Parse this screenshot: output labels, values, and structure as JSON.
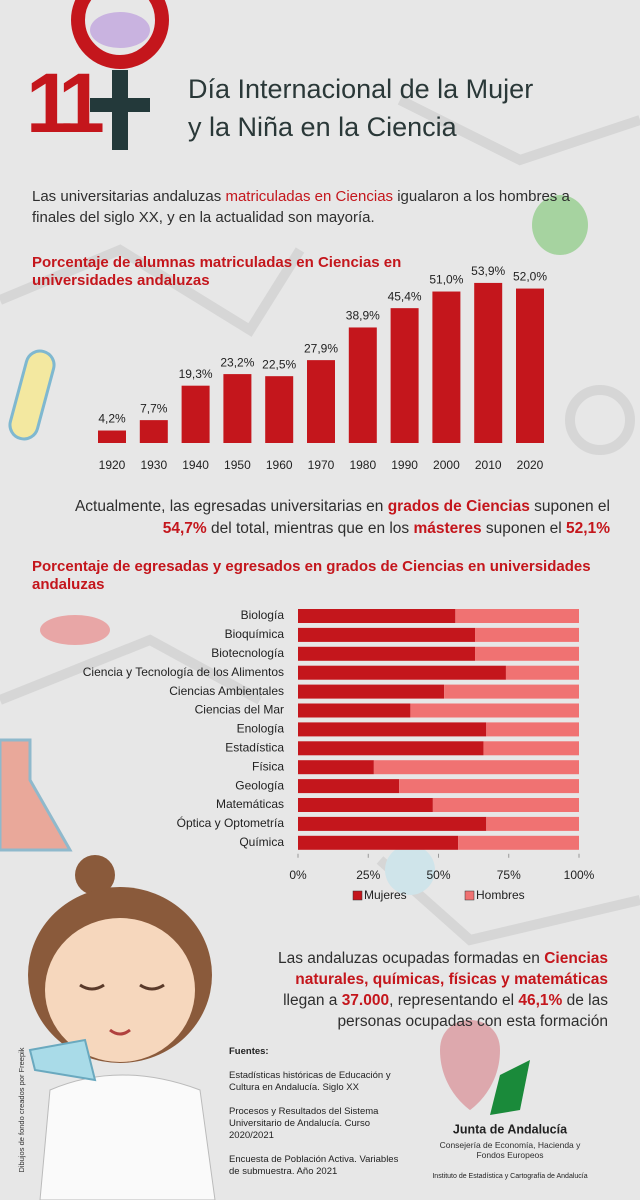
{
  "header": {
    "logo": "11",
    "title_line1": "Día Internacional de la Mujer",
    "title_line2": "y la Niña en la Ciencia"
  },
  "intro": [
    "Las universitarias andaluzas ",
    "matriculadas en Ciencias",
    " igualaron a los hombres a finales del siglo XX, y en la actualidad son mayoría."
  ],
  "summary": [
    "Actualmente, las egresadas universitarias en ",
    "grados de Ciencias",
    " suponen el ",
    "54,7%",
    " del total, mientras que en los ",
    "másteres",
    " suponen el ",
    "52,1%"
  ],
  "employment": [
    "Las andaluzas ocupadas formadas en ",
    "Ciencias naturales, químicas, físicas y matemáticas",
    " llegan a ",
    "37.000",
    ", representando el ",
    "46,1%",
    " de las personas ocupadas con esta formación"
  ],
  "chart_data": [
    {
      "type": "bar",
      "title": "Porcentaje de alumnas matriculadas en Ciencias en universidades andaluzas",
      "color": "#c4161c",
      "categories": [
        "1920",
        "1930",
        "1940",
        "1950",
        "1960",
        "1970",
        "1980",
        "1990",
        "2000",
        "2010",
        "2020"
      ],
      "values": [
        4.2,
        7.7,
        19.3,
        23.2,
        22.5,
        27.9,
        38.9,
        45.4,
        51.0,
        53.9,
        52.0
      ],
      "value_labels": [
        "4,2%",
        "7,7%",
        "19,3%",
        "23,2%",
        "22,5%",
        "27,9%",
        "38,9%",
        "45,4%",
        "51,0%",
        "53,9%",
        "52,0%"
      ]
    },
    {
      "type": "stacked-hbar",
      "title": "Porcentaje de egresadas y egresados en grados de Ciencias en universidades andaluzas",
      "categories": [
        "Biología",
        "Bioquímica",
        "Biotecnología",
        "Ciencia y Tecnología de los Alimentos",
        "Ciencias Ambientales",
        "Ciencias del Mar",
        "Enología",
        "Estadística",
        "Física",
        "Geología",
        "Matemáticas",
        "Óptica y Optometría",
        "Química"
      ],
      "series": [
        {
          "name": "Mujeres",
          "color": "#c4161c",
          "values": [
            56,
            63,
            63,
            74,
            52,
            40,
            67,
            66,
            27,
            36,
            48,
            67,
            57
          ]
        },
        {
          "name": "Hombres",
          "color": "#f07272",
          "values": [
            44,
            37,
            37,
            26,
            48,
            60,
            33,
            34,
            73,
            64,
            52,
            33,
            43
          ]
        }
      ],
      "xlim": [
        0,
        100
      ],
      "xticks": [
        {
          "value": 0,
          "label": "0%"
        },
        {
          "value": 25,
          "label": "25%"
        },
        {
          "value": 50,
          "label": "50%"
        },
        {
          "value": 75,
          "label": "75%"
        },
        {
          "value": 100,
          "label": "100%"
        }
      ],
      "legend": "bottom"
    }
  ],
  "sources": {
    "heading": "Fuentes:",
    "items": [
      "Estadísticas históricas de Educación y Cultura en Andalucía. Siglo XX",
      "Procesos y Resultados del Sistema Universitario de Andalucía. Curso 2020/2021",
      "Encuesta de Población Activa. Variables de submuestra. Año 2021"
    ]
  },
  "credit": "Dibujos de fondo creados por Freepik",
  "institution": {
    "name": "Junta de Andalucía",
    "department": "Consejería de Economía, Hacienda y Fondos Europeos",
    "institute": "Instituto de Estadística y Cartografía de Andalucía"
  }
}
